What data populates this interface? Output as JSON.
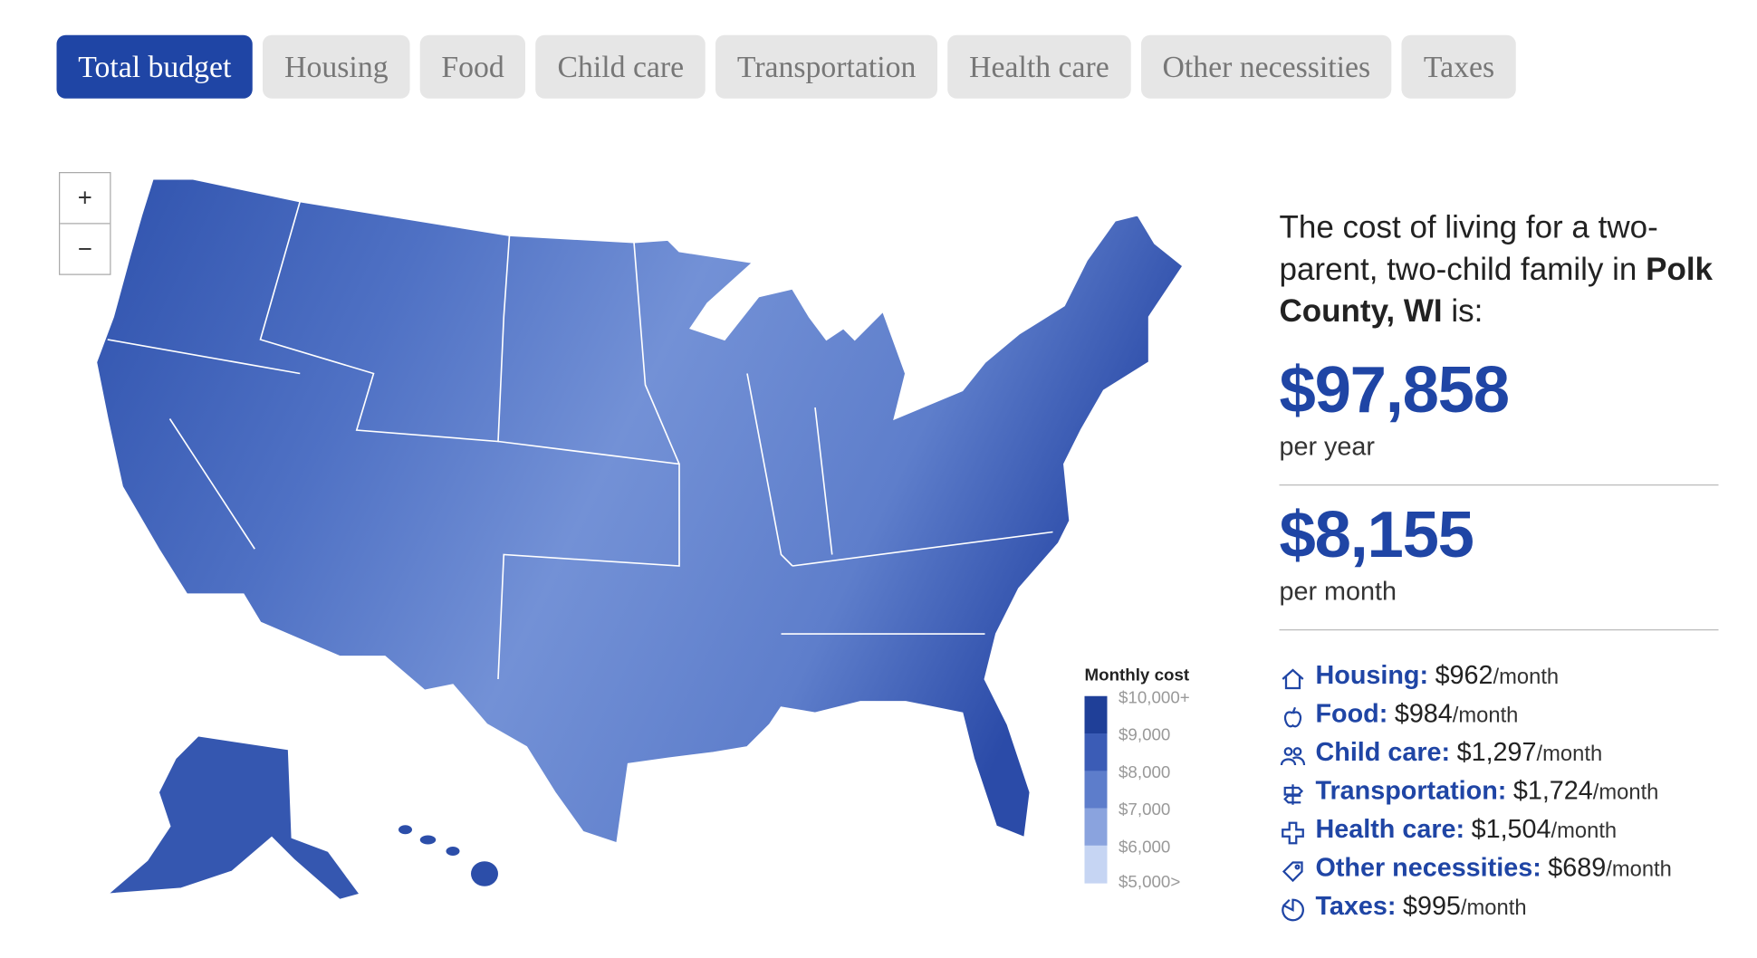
{
  "tabs": [
    "Total budget",
    "Housing",
    "Food",
    "Child care",
    "Transportation",
    "Health care",
    "Other necessities",
    "Taxes"
  ],
  "active_tab": 0,
  "zoom": {
    "in": "+",
    "out": "−"
  },
  "legend": {
    "title": "Monthly cost",
    "labels": [
      "$10,000+",
      "$9,000",
      "$8,000",
      "$7,000",
      "$6,000",
      "$5,000>"
    ],
    "colors": [
      "#1f3f98",
      "#3b5cb6",
      "#5d7dcb",
      "#8aa3de",
      "#c6d5f3"
    ]
  },
  "panel": {
    "intro": "The cost of living for a two-parent, two-child family in",
    "county": "Polk County, WI",
    "suffix": "is:",
    "yearly": "$97,858",
    "yearly_unit": "per year",
    "monthly": "$8,155",
    "monthly_unit": "per month",
    "breakdown": [
      {
        "label": "Housing:",
        "amount": "$962",
        "unit": "/month"
      },
      {
        "label": "Food:",
        "amount": "$984",
        "unit": "/month"
      },
      {
        "label": "Child care:",
        "amount": "$1,297",
        "unit": "/month"
      },
      {
        "label": "Transportation:",
        "amount": "$1,724",
        "unit": "/month"
      },
      {
        "label": "Health care:",
        "amount": "$1,504",
        "unit": "/month"
      },
      {
        "label": "Other necessities:",
        "amount": "$689",
        "unit": "/month"
      },
      {
        "label": "Taxes:",
        "amount": "$995",
        "unit": "/month"
      }
    ]
  }
}
